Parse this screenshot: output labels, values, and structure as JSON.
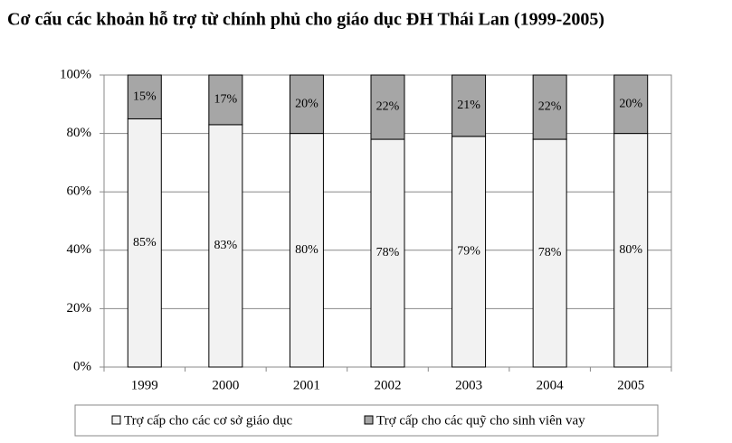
{
  "chart_data": {
    "type": "stacked_bar",
    "title": "Cơ cấu các khoản hỗ trợ từ chính phủ cho giáo dục ĐH Thái Lan (1999-2005)",
    "categories": [
      "1999",
      "2000",
      "2001",
      "2002",
      "2003",
      "2004",
      "2005"
    ],
    "series": [
      {
        "name": "Trợ cấp cho các cơ sở giáo dục",
        "color": "#f2f2f2",
        "values": [
          85,
          83,
          80,
          78,
          79,
          78,
          80
        ],
        "value_labels": [
          "85%",
          "83%",
          "80%",
          "78%",
          "79%",
          "78%",
          "80%"
        ]
      },
      {
        "name": "Trợ cấp cho các quỹ cho sinh viên vay",
        "color": "#a6a6a6",
        "values": [
          15,
          17,
          20,
          22,
          21,
          22,
          20
        ],
        "value_labels": [
          "15%",
          "17%",
          "20%",
          "22%",
          "21%",
          "22%",
          "20%"
        ]
      }
    ],
    "ylim": [
      0,
      100
    ],
    "yticks": [
      {
        "value": 0,
        "label": "0%"
      },
      {
        "value": 20,
        "label": "20%"
      },
      {
        "value": 40,
        "label": "40%"
      },
      {
        "value": 60,
        "label": "60%"
      },
      {
        "value": 80,
        "label": "80%"
      },
      {
        "value": 100,
        "label": "100%"
      }
    ],
    "grid": true,
    "legend": "bottom"
  }
}
